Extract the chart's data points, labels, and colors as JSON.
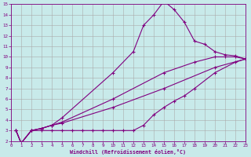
{
  "xlabel": "Windchill (Refroidissement éolien,°C)",
  "bg_color": "#c8eaea",
  "line_color": "#800080",
  "grid_color": "#aaaaaa",
  "xlim": [
    0,
    23
  ],
  "ylim": [
    2,
    15
  ],
  "xticks": [
    0,
    1,
    2,
    3,
    4,
    5,
    6,
    7,
    8,
    9,
    10,
    11,
    12,
    13,
    14,
    15,
    16,
    17,
    18,
    19,
    20,
    21,
    22,
    23
  ],
  "yticks": [
    2,
    3,
    4,
    5,
    6,
    7,
    8,
    9,
    10,
    11,
    12,
    13,
    14,
    15
  ],
  "line_peak": [
    [
      0.5,
      3.0
    ],
    [
      1.0,
      1.8
    ],
    [
      2.0,
      3.0
    ],
    [
      3.0,
      3.2
    ],
    [
      4.0,
      3.5
    ],
    [
      5.0,
      4.2
    ],
    [
      10.0,
      8.5
    ],
    [
      12.0,
      10.5
    ],
    [
      13.0,
      13.0
    ],
    [
      14.0,
      14.0
    ],
    [
      15.0,
      15.3
    ],
    [
      16.0,
      14.5
    ],
    [
      17.0,
      13.3
    ],
    [
      18.0,
      11.5
    ],
    [
      19.0,
      11.2
    ],
    [
      20.0,
      10.5
    ],
    [
      21.0,
      10.2
    ],
    [
      22.0,
      10.1
    ],
    [
      23.0,
      9.8
    ]
  ],
  "line_upper": [
    [
      0.5,
      3.0
    ],
    [
      1.0,
      1.8
    ],
    [
      2.0,
      3.0
    ],
    [
      3.0,
      3.2
    ],
    [
      4.0,
      3.5
    ],
    [
      5.0,
      3.8
    ],
    [
      10.0,
      6.0
    ],
    [
      15.0,
      8.5
    ],
    [
      18.0,
      9.5
    ],
    [
      20.0,
      10.0
    ],
    [
      21.0,
      10.0
    ],
    [
      22.0,
      10.0
    ],
    [
      23.0,
      9.8
    ]
  ],
  "line_mid": [
    [
      0.5,
      3.0
    ],
    [
      1.0,
      1.8
    ],
    [
      2.0,
      3.0
    ],
    [
      3.0,
      3.2
    ],
    [
      4.0,
      3.5
    ],
    [
      5.0,
      3.7
    ],
    [
      10.0,
      5.2
    ],
    [
      15.0,
      7.0
    ],
    [
      20.0,
      9.0
    ],
    [
      23.0,
      9.8
    ]
  ],
  "line_flat": [
    [
      0.5,
      3.0
    ],
    [
      1.0,
      1.8
    ],
    [
      2.0,
      3.0
    ],
    [
      3.0,
      3.0
    ],
    [
      4.0,
      3.0
    ],
    [
      5.0,
      3.0
    ],
    [
      6.0,
      3.0
    ],
    [
      7.0,
      3.0
    ],
    [
      8.0,
      3.0
    ],
    [
      9.0,
      3.0
    ],
    [
      10.0,
      3.0
    ],
    [
      11.0,
      3.0
    ],
    [
      12.0,
      3.0
    ],
    [
      13.0,
      3.5
    ],
    [
      14.0,
      4.5
    ],
    [
      15.0,
      5.2
    ],
    [
      16.0,
      5.8
    ],
    [
      17.0,
      6.3
    ],
    [
      18.0,
      7.0
    ],
    [
      20.0,
      8.5
    ],
    [
      22.0,
      9.5
    ],
    [
      23.0,
      9.8
    ]
  ]
}
